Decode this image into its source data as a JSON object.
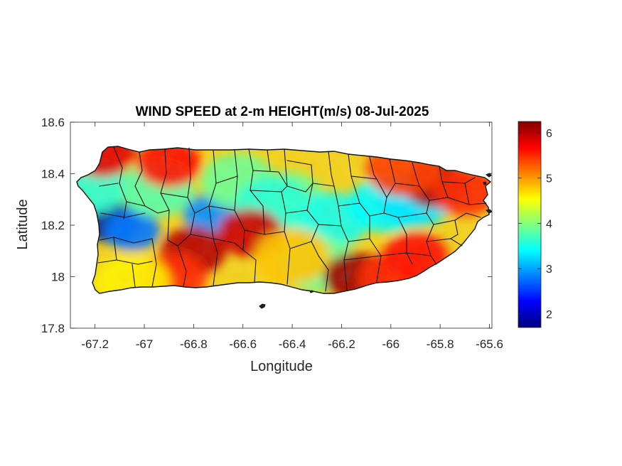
{
  "chart_data": {
    "type": "heatmap",
    "title": "WIND SPEED at 2-m HEIGHT(m/s) 08-Jul-2025",
    "xlabel": "Longitude",
    "ylabel": "Latitude",
    "xlim": [
      -67.3,
      -65.59
    ],
    "ylim": [
      17.8,
      18.6
    ],
    "x_ticks": [
      -67.2,
      -67,
      -66.8,
      -66.6,
      -66.4,
      -66.2,
      -66,
      -65.8,
      -65.6
    ],
    "x_tick_labels": [
      "-67.2",
      "-67",
      "-66.8",
      "-66.6",
      "-66.4",
      "-66.2",
      "-66",
      "-65.8",
      "-65.6"
    ],
    "y_ticks": [
      17.8,
      18,
      18.2,
      18.4,
      18.6
    ],
    "y_tick_labels": [
      "17.8",
      "18",
      "18.2",
      "18.4",
      "18.6"
    ],
    "colorbar": {
      "colormap": "jet",
      "range": [
        1.7,
        6.25
      ],
      "ticks": [
        2,
        3,
        4,
        5,
        6
      ],
      "tick_labels": [
        "2",
        "3",
        "4",
        "5",
        "6"
      ],
      "colors": [
        "#00007f",
        "#0000ff",
        "#0080ff",
        "#00ffff",
        "#80ff80",
        "#ffff00",
        "#ff8000",
        "#ff0000",
        "#7f0000"
      ]
    },
    "hotspots": [
      {
        "lon": -67.13,
        "lat": 18.21,
        "value": 1.8
      },
      {
        "lon": -67.05,
        "lat": 18.18,
        "value": 2.8
      },
      {
        "lon": -67.22,
        "lat": 18.35,
        "value": 3.6
      },
      {
        "lon": -66.95,
        "lat": 18.34,
        "value": 3.8
      },
      {
        "lon": -66.73,
        "lat": 18.24,
        "value": 2.9
      },
      {
        "lon": -66.62,
        "lat": 18.37,
        "value": 3.9
      },
      {
        "lon": -66.42,
        "lat": 18.3,
        "value": 3.9
      },
      {
        "lon": -66.24,
        "lat": 18.22,
        "value": 3.5
      },
      {
        "lon": -66.02,
        "lat": 18.28,
        "value": 3.4
      },
      {
        "lon": -65.9,
        "lat": 18.3,
        "value": 3.3
      },
      {
        "lon": -66.3,
        "lat": 18.05,
        "value": 3.9
      },
      {
        "lon": -66.48,
        "lat": 18.28,
        "value": 3.6
      },
      {
        "lon": -67.17,
        "lat": 18.48,
        "value": 5.8
      },
      {
        "lon": -66.9,
        "lat": 18.44,
        "value": 5.6
      },
      {
        "lon": -66.8,
        "lat": 18.1,
        "value": 6.0
      },
      {
        "lon": -66.88,
        "lat": 18.0,
        "value": 5.5
      },
      {
        "lon": -66.57,
        "lat": 18.17,
        "value": 5.9
      },
      {
        "lon": -66.14,
        "lat": 18.0,
        "value": 6.1
      },
      {
        "lon": -66.0,
        "lat": 18.0,
        "value": 5.5
      },
      {
        "lon": -65.82,
        "lat": 18.36,
        "value": 6.1
      },
      {
        "lon": -65.7,
        "lat": 18.33,
        "value": 5.5
      },
      {
        "lon": -65.9,
        "lat": 18.08,
        "value": 5.6
      },
      {
        "lon": -65.95,
        "lat": 18.42,
        "value": 5.4
      },
      {
        "lon": -67.05,
        "lat": 17.98,
        "value": 4.6
      },
      {
        "lon": -66.4,
        "lat": 18.08,
        "value": 4.8
      }
    ]
  }
}
